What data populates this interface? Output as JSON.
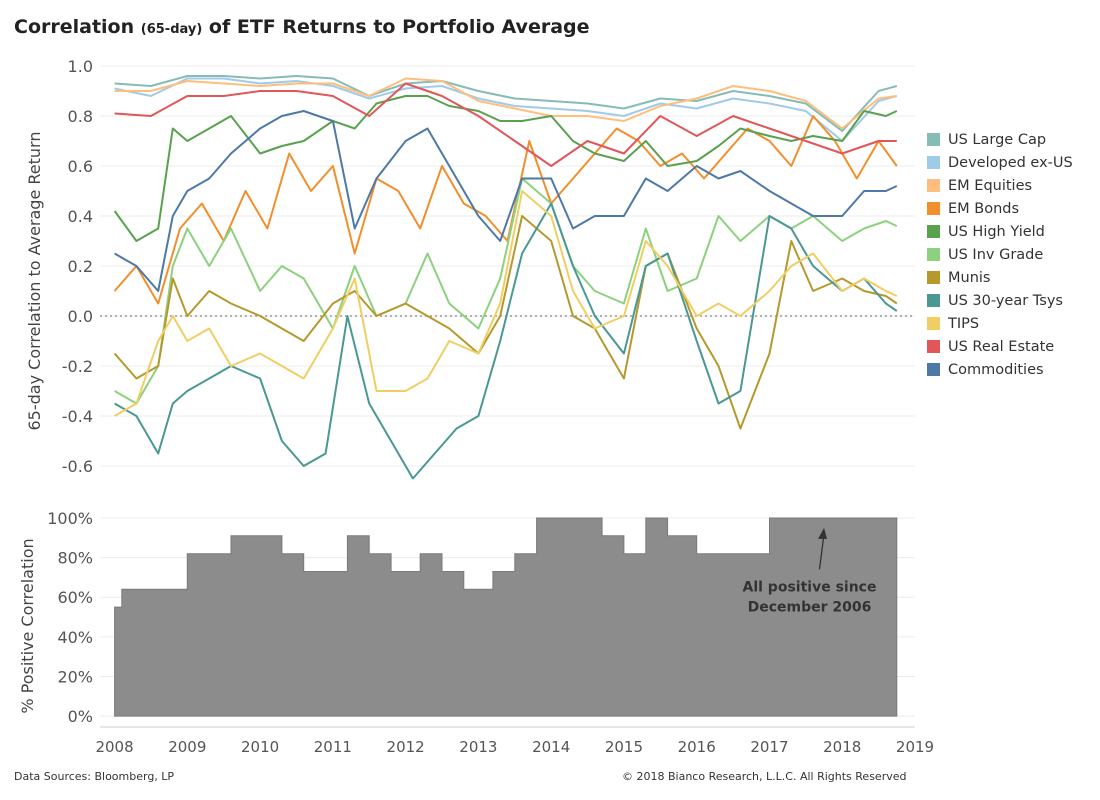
{
  "title": {
    "prefix": "Correlation",
    "small": "(65-day)",
    "suffix": "of ETF Returns to Portfolio Average"
  },
  "footer": {
    "source": "Data Sources: Bloomberg, LP",
    "copyright": "© 2018 Bianco Research, L.L.C. All Rights Reserved"
  },
  "chart_data": [
    {
      "type": "line",
      "ylabel": "65-day Correlation to Average Return",
      "ylim": [
        -0.72,
        1.0
      ],
      "yticks": [
        1.0,
        0.8,
        0.6,
        0.4,
        0.2,
        0.0,
        -0.2,
        -0.4,
        -0.6
      ],
      "ytick_labels": [
        "1.0",
        "0.8",
        "0.6",
        "0.4",
        "0.2",
        "0.0",
        "-0.2",
        "-0.4",
        "-0.6"
      ],
      "xlim": [
        2007.8,
        2019.0
      ],
      "reference_line": 0.0,
      "grid": true,
      "legend_position": "right",
      "series": [
        {
          "name": "US Large Cap",
          "color": "#86bcb6",
          "x": [
            2008.0,
            2008.5,
            2009.0,
            2009.5,
            2010.0,
            2010.5,
            2011.0,
            2011.5,
            2012.0,
            2012.5,
            2013.0,
            2013.5,
            2014.0,
            2014.5,
            2015.0,
            2015.5,
            2016.0,
            2016.5,
            2017.0,
            2017.5,
            2018.0,
            2018.5,
            2018.75
          ],
          "y": [
            0.93,
            0.92,
            0.96,
            0.96,
            0.95,
            0.96,
            0.95,
            0.88,
            0.93,
            0.94,
            0.9,
            0.87,
            0.86,
            0.85,
            0.83,
            0.87,
            0.86,
            0.9,
            0.88,
            0.85,
            0.74,
            0.9,
            0.92
          ]
        },
        {
          "name": "Developed ex-US",
          "color": "#a0cbe8",
          "x": [
            2008.0,
            2008.5,
            2009.0,
            2009.5,
            2010.0,
            2010.5,
            2011.0,
            2011.5,
            2012.0,
            2012.5,
            2013.0,
            2013.5,
            2014.0,
            2014.5,
            2015.0,
            2015.5,
            2016.0,
            2016.5,
            2017.0,
            2017.5,
            2018.0,
            2018.5,
            2018.75
          ],
          "y": [
            0.91,
            0.88,
            0.95,
            0.95,
            0.93,
            0.94,
            0.92,
            0.87,
            0.91,
            0.92,
            0.87,
            0.84,
            0.83,
            0.82,
            0.8,
            0.85,
            0.83,
            0.87,
            0.85,
            0.82,
            0.7,
            0.86,
            0.88
          ]
        },
        {
          "name": "EM Equities",
          "color": "#ffbe7d",
          "x": [
            2008.0,
            2008.5,
            2009.0,
            2009.5,
            2010.0,
            2010.5,
            2011.0,
            2011.5,
            2012.0,
            2012.5,
            2013.0,
            2013.5,
            2014.0,
            2014.5,
            2015.0,
            2015.5,
            2016.0,
            2016.5,
            2017.0,
            2017.5,
            2018.0,
            2018.5,
            2018.75
          ],
          "y": [
            0.9,
            0.9,
            0.94,
            0.93,
            0.92,
            0.93,
            0.93,
            0.88,
            0.95,
            0.94,
            0.86,
            0.83,
            0.8,
            0.8,
            0.78,
            0.84,
            0.87,
            0.92,
            0.9,
            0.86,
            0.75,
            0.87,
            0.88
          ]
        },
        {
          "name": "EM Bonds",
          "color": "#f28e2b",
          "x": [
            2008.0,
            2008.3,
            2008.6,
            2008.9,
            2009.2,
            2009.5,
            2009.8,
            2010.1,
            2010.4,
            2010.7,
            2011.0,
            2011.3,
            2011.6,
            2011.9,
            2012.2,
            2012.5,
            2012.8,
            2013.1,
            2013.4,
            2013.7,
            2014.0,
            2014.3,
            2014.6,
            2014.9,
            2015.2,
            2015.5,
            2015.8,
            2016.1,
            2016.4,
            2016.7,
            2017.0,
            2017.3,
            2017.6,
            2017.9,
            2018.2,
            2018.5,
            2018.75
          ],
          "y": [
            0.1,
            0.2,
            0.05,
            0.35,
            0.45,
            0.3,
            0.5,
            0.35,
            0.65,
            0.5,
            0.6,
            0.25,
            0.55,
            0.5,
            0.35,
            0.6,
            0.45,
            0.4,
            0.3,
            0.7,
            0.45,
            0.55,
            0.65,
            0.75,
            0.7,
            0.6,
            0.65,
            0.55,
            0.65,
            0.75,
            0.7,
            0.6,
            0.8,
            0.7,
            0.55,
            0.7,
            0.6
          ]
        },
        {
          "name": "US High Yield",
          "color": "#59a14f",
          "x": [
            2008.0,
            2008.3,
            2008.6,
            2008.8,
            2009.0,
            2009.3,
            2009.6,
            2010.0,
            2010.3,
            2010.6,
            2011.0,
            2011.3,
            2011.6,
            2012.0,
            2012.3,
            2012.6,
            2013.0,
            2013.3,
            2013.6,
            2014.0,
            2014.3,
            2014.6,
            2015.0,
            2015.3,
            2015.6,
            2016.0,
            2016.3,
            2016.6,
            2017.0,
            2017.3,
            2017.6,
            2018.0,
            2018.3,
            2018.6,
            2018.75
          ],
          "y": [
            0.42,
            0.3,
            0.35,
            0.75,
            0.7,
            0.75,
            0.8,
            0.65,
            0.68,
            0.7,
            0.78,
            0.75,
            0.85,
            0.88,
            0.88,
            0.84,
            0.82,
            0.78,
            0.78,
            0.8,
            0.7,
            0.65,
            0.62,
            0.7,
            0.6,
            0.62,
            0.68,
            0.75,
            0.72,
            0.7,
            0.72,
            0.7,
            0.82,
            0.8,
            0.82
          ]
        },
        {
          "name": "US Inv Grade",
          "color": "#8cd17d",
          "x": [
            2008.0,
            2008.3,
            2008.6,
            2008.8,
            2009.0,
            2009.3,
            2009.6,
            2010.0,
            2010.3,
            2010.6,
            2011.0,
            2011.3,
            2011.6,
            2012.0,
            2012.3,
            2012.6,
            2013.0,
            2013.3,
            2013.6,
            2014.0,
            2014.3,
            2014.6,
            2015.0,
            2015.3,
            2015.6,
            2016.0,
            2016.3,
            2016.6,
            2017.0,
            2017.3,
            2017.6,
            2018.0,
            2018.3,
            2018.6,
            2018.75
          ],
          "y": [
            -0.3,
            -0.35,
            -0.2,
            0.2,
            0.35,
            0.2,
            0.35,
            0.1,
            0.2,
            0.15,
            -0.05,
            0.2,
            0.0,
            0.05,
            0.25,
            0.05,
            -0.05,
            0.15,
            0.55,
            0.45,
            0.2,
            0.1,
            0.05,
            0.35,
            0.1,
            0.15,
            0.4,
            0.3,
            0.4,
            0.35,
            0.4,
            0.3,
            0.35,
            0.38,
            0.36
          ]
        },
        {
          "name": "Munis",
          "color": "#b6992d",
          "x": [
            2008.0,
            2008.3,
            2008.6,
            2008.8,
            2009.0,
            2009.3,
            2009.6,
            2010.0,
            2010.3,
            2010.6,
            2011.0,
            2011.3,
            2011.6,
            2012.0,
            2012.3,
            2012.6,
            2013.0,
            2013.3,
            2013.6,
            2014.0,
            2014.3,
            2014.6,
            2015.0,
            2015.3,
            2015.6,
            2016.0,
            2016.3,
            2016.6,
            2017.0,
            2017.3,
            2017.6,
            2018.0,
            2018.3,
            2018.6,
            2018.75
          ],
          "y": [
            -0.15,
            -0.25,
            -0.2,
            0.15,
            0.0,
            0.1,
            0.05,
            0.0,
            -0.05,
            -0.1,
            0.05,
            0.1,
            0.0,
            0.05,
            0.0,
            -0.05,
            -0.15,
            0.0,
            0.4,
            0.3,
            0.0,
            -0.05,
            -0.25,
            0.2,
            0.25,
            -0.05,
            -0.2,
            -0.45,
            -0.15,
            0.3,
            0.1,
            0.15,
            0.1,
            0.08,
            0.05
          ]
        },
        {
          "name": "US 30-year Tsys",
          "color": "#499894",
          "x": [
            2008.0,
            2008.3,
            2008.6,
            2008.8,
            2009.0,
            2009.3,
            2009.6,
            2010.0,
            2010.3,
            2010.6,
            2010.9,
            2011.2,
            2011.5,
            2011.8,
            2012.1,
            2012.4,
            2012.7,
            2013.0,
            2013.3,
            2013.6,
            2014.0,
            2014.3,
            2014.6,
            2015.0,
            2015.3,
            2015.6,
            2016.0,
            2016.3,
            2016.6,
            2017.0,
            2017.3,
            2017.6,
            2018.0,
            2018.3,
            2018.6,
            2018.75
          ],
          "y": [
            -0.35,
            -0.4,
            -0.55,
            -0.35,
            -0.3,
            -0.25,
            -0.2,
            -0.25,
            -0.5,
            -0.6,
            -0.55,
            0.0,
            -0.35,
            -0.5,
            -0.65,
            -0.55,
            -0.45,
            -0.4,
            -0.1,
            0.25,
            0.45,
            0.2,
            0.0,
            -0.15,
            0.2,
            0.25,
            -0.1,
            -0.35,
            -0.3,
            0.4,
            0.35,
            0.2,
            0.1,
            0.15,
            0.05,
            0.02
          ]
        },
        {
          "name": "TIPS",
          "color": "#f1ce63",
          "x": [
            2008.0,
            2008.3,
            2008.6,
            2008.8,
            2009.0,
            2009.3,
            2009.6,
            2010.0,
            2010.3,
            2010.6,
            2011.0,
            2011.3,
            2011.6,
            2012.0,
            2012.3,
            2012.6,
            2013.0,
            2013.3,
            2013.6,
            2014.0,
            2014.3,
            2014.6,
            2015.0,
            2015.3,
            2015.6,
            2016.0,
            2016.3,
            2016.6,
            2017.0,
            2017.3,
            2017.6,
            2018.0,
            2018.3,
            2018.6,
            2018.75
          ],
          "y": [
            -0.4,
            -0.35,
            -0.1,
            0.0,
            -0.1,
            -0.05,
            -0.2,
            -0.15,
            -0.2,
            -0.25,
            -0.05,
            0.15,
            -0.3,
            -0.3,
            -0.25,
            -0.1,
            -0.15,
            0.05,
            0.5,
            0.4,
            0.1,
            -0.05,
            0.0,
            0.3,
            0.2,
            0.0,
            0.05,
            0.0,
            0.1,
            0.2,
            0.25,
            0.1,
            0.15,
            0.1,
            0.08
          ]
        },
        {
          "name": "US Real Estate",
          "color": "#e15759",
          "x": [
            2008.0,
            2008.5,
            2009.0,
            2009.5,
            2010.0,
            2010.5,
            2011.0,
            2011.5,
            2012.0,
            2012.5,
            2013.0,
            2013.5,
            2014.0,
            2014.5,
            2015.0,
            2015.5,
            2016.0,
            2016.5,
            2017.0,
            2017.5,
            2018.0,
            2018.5,
            2018.75
          ],
          "y": [
            0.81,
            0.8,
            0.88,
            0.88,
            0.9,
            0.9,
            0.88,
            0.8,
            0.93,
            0.88,
            0.8,
            0.7,
            0.6,
            0.7,
            0.65,
            0.8,
            0.72,
            0.8,
            0.75,
            0.7,
            0.65,
            0.7,
            0.7
          ]
        },
        {
          "name": "Commodities",
          "color": "#4e79a7",
          "x": [
            2008.0,
            2008.3,
            2008.6,
            2008.8,
            2009.0,
            2009.3,
            2009.6,
            2010.0,
            2010.3,
            2010.6,
            2011.0,
            2011.3,
            2011.6,
            2012.0,
            2012.3,
            2012.6,
            2013.0,
            2013.3,
            2013.6,
            2014.0,
            2014.3,
            2014.6,
            2015.0,
            2015.3,
            2015.6,
            2016.0,
            2016.3,
            2016.6,
            2017.0,
            2017.3,
            2017.6,
            2018.0,
            2018.3,
            2018.6,
            2018.75
          ],
          "y": [
            0.25,
            0.2,
            0.1,
            0.4,
            0.5,
            0.55,
            0.65,
            0.75,
            0.8,
            0.82,
            0.78,
            0.35,
            0.55,
            0.7,
            0.75,
            0.6,
            0.4,
            0.3,
            0.55,
            0.55,
            0.35,
            0.4,
            0.4,
            0.55,
            0.5,
            0.6,
            0.55,
            0.58,
            0.5,
            0.45,
            0.4,
            0.4,
            0.5,
            0.5,
            0.52
          ]
        }
      ]
    },
    {
      "type": "area",
      "ylabel": "% Positive Correlation",
      "ylim": [
        -0.05,
        1.0
      ],
      "yticks": [
        1.0,
        0.8,
        0.6,
        0.4,
        0.2,
        0.0
      ],
      "ytick_labels": [
        "100%",
        "80%",
        "60%",
        "40%",
        "20%",
        "0%"
      ],
      "xlim": [
        2007.8,
        2019.0
      ],
      "xticks": [
        2008,
        2009,
        2010,
        2011,
        2012,
        2013,
        2014,
        2015,
        2016,
        2017,
        2018,
        2019
      ],
      "xtick_labels": [
        "2008",
        "2009",
        "2010",
        "2011",
        "2012",
        "2013",
        "2014",
        "2015",
        "2016",
        "2017",
        "2018",
        "2019"
      ],
      "color": "#8c8c8c",
      "x": [
        2008.0,
        2008.1,
        2008.4,
        2008.7,
        2009.0,
        2009.3,
        2009.6,
        2010.0,
        2010.3,
        2010.6,
        2010.8,
        2011.2,
        2011.5,
        2011.8,
        2012.2,
        2012.5,
        2012.8,
        2013.2,
        2013.5,
        2013.8,
        2014.0,
        2014.4,
        2014.7,
        2015.0,
        2015.3,
        2015.6,
        2016.0,
        2016.3,
        2016.6,
        2017.0,
        2017.3,
        2017.6,
        2018.0,
        2018.3,
        2018.6,
        2018.75
      ],
      "y": [
        0.55,
        0.64,
        0.64,
        0.64,
        0.82,
        0.82,
        0.91,
        0.91,
        0.82,
        0.73,
        0.73,
        0.91,
        0.82,
        0.73,
        0.82,
        0.73,
        0.64,
        0.73,
        0.82,
        1.0,
        1.0,
        1.0,
        0.91,
        0.82,
        1.0,
        0.91,
        0.82,
        0.82,
        0.82,
        1.0,
        1.0,
        1.0,
        1.0,
        1.0,
        1.0,
        1.0
      ],
      "annotation": {
        "text_lines": [
          "All positive since",
          "December 2006"
        ],
        "x": 2017.55,
        "y": 0.63,
        "arrow_to_x": 2017.75,
        "arrow_to_y": 0.95
      }
    }
  ]
}
